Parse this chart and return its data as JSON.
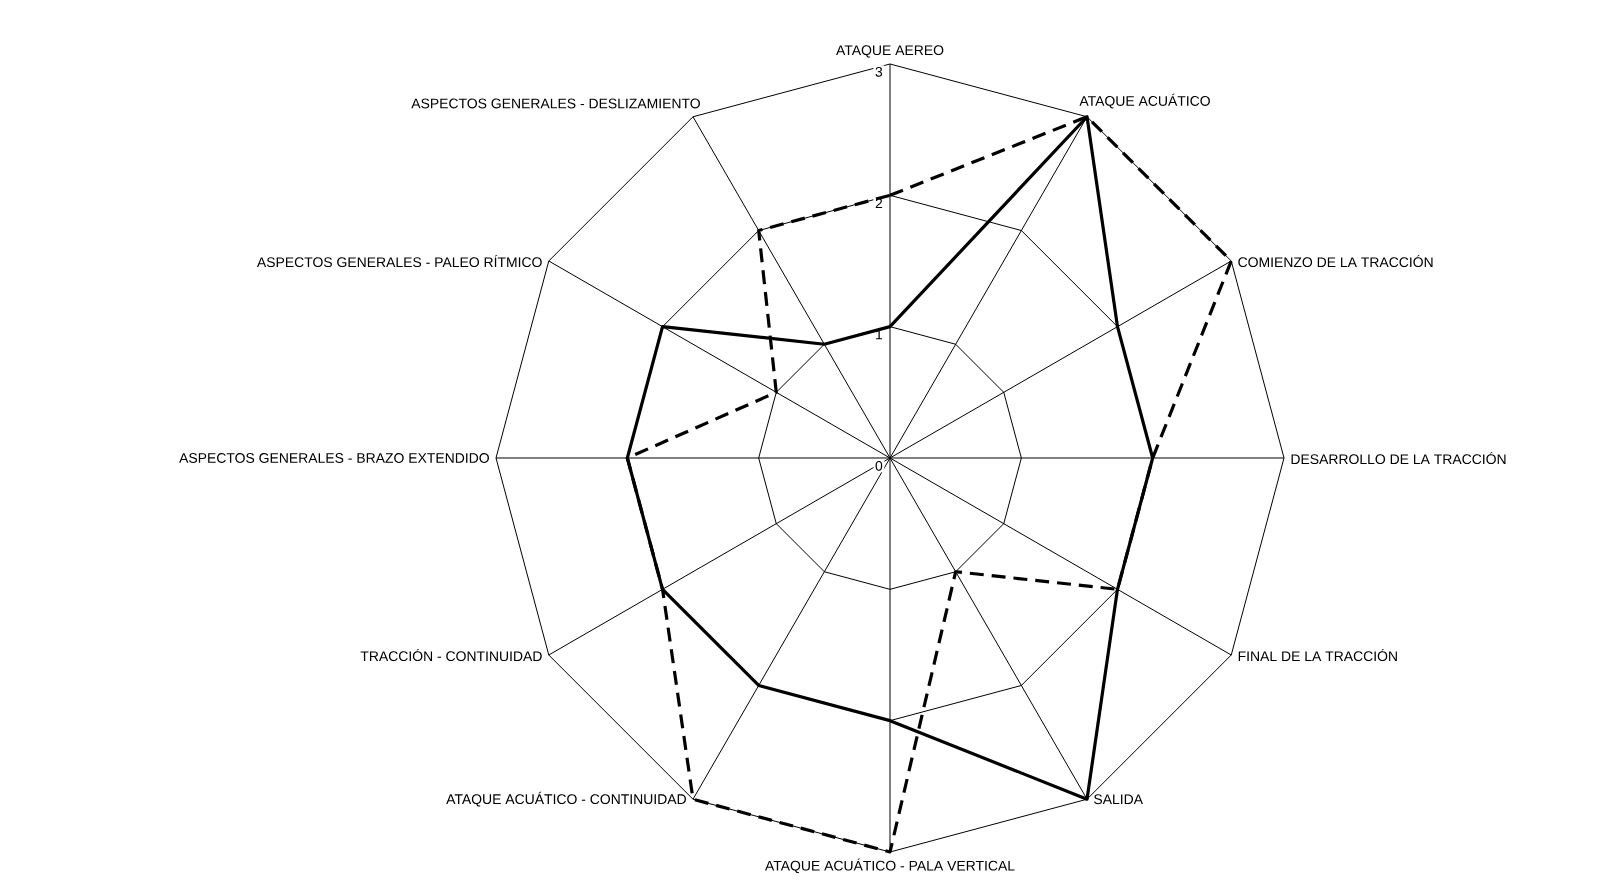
{
  "chart_data": {
    "type": "radar",
    "categories": [
      "ATAQUE AEREO",
      "ATAQUE ACUÁTICO",
      "COMIENZO DE LA TRACCIÓN",
      "DESARROLLO DE LA TRACCIÓN",
      "FINAL DE LA TRACCIÓN",
      "SALIDA",
      "ATAQUE ACUÁTICO - PALA VERTICAL",
      "ATAQUE ACUÁTICO - CONTINUIDAD",
      "TRACCIÓN - CONTINUIDAD",
      "ASPECTOS GENERALES - BRAZO EXTENDIDO",
      "ASPECTOS GENERALES - PALEO RÍTMICO",
      "ASPECTOS GENERALES - DESLIZAMIENTO"
    ],
    "series": [
      {
        "color": "#000000",
        "line_style": "solid",
        "values": [
          1,
          3,
          2,
          2,
          2,
          3,
          2,
          2,
          2,
          2,
          2,
          1
        ]
      },
      {
        "color": "#000000",
        "line_style": "dashed",
        "values": [
          2,
          3,
          3,
          2,
          2,
          1,
          3,
          3,
          2,
          2,
          1,
          2
        ]
      }
    ],
    "ylim": [
      0,
      3
    ],
    "yticks": [
      0,
      1,
      2,
      3
    ],
    "grid": true,
    "marker": "none"
  }
}
